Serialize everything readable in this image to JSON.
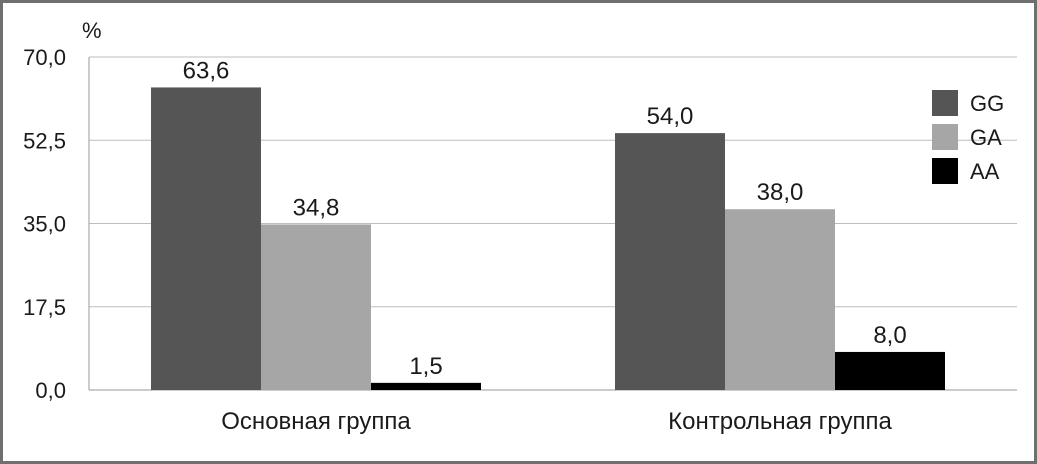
{
  "chart_data": {
    "type": "bar",
    "unit_label": "%",
    "categories": [
      "Основная группа",
      "Контрольная группа"
    ],
    "series": [
      {
        "name": "GG",
        "values": [
          63.6,
          54.0
        ],
        "labels": [
          "63,6",
          "54,0"
        ],
        "color": "#555555"
      },
      {
        "name": "GA",
        "values": [
          34.8,
          38.0
        ],
        "labels": [
          "34,8",
          "38,0"
        ],
        "color": "#a6a6a6"
      },
      {
        "name": "AA",
        "values": [
          1.5,
          8.0
        ],
        "labels": [
          "1,5",
          "8,0"
        ],
        "color": "#000000"
      }
    ],
    "yticks": [
      0,
      17.5,
      35.0,
      52.5,
      70.0
    ],
    "ytick_labels": [
      "0,0",
      "17,5",
      "35,0",
      "52,5",
      "70,0"
    ],
    "ylim": [
      0,
      70
    ],
    "grid": true,
    "legend_position": "right"
  }
}
